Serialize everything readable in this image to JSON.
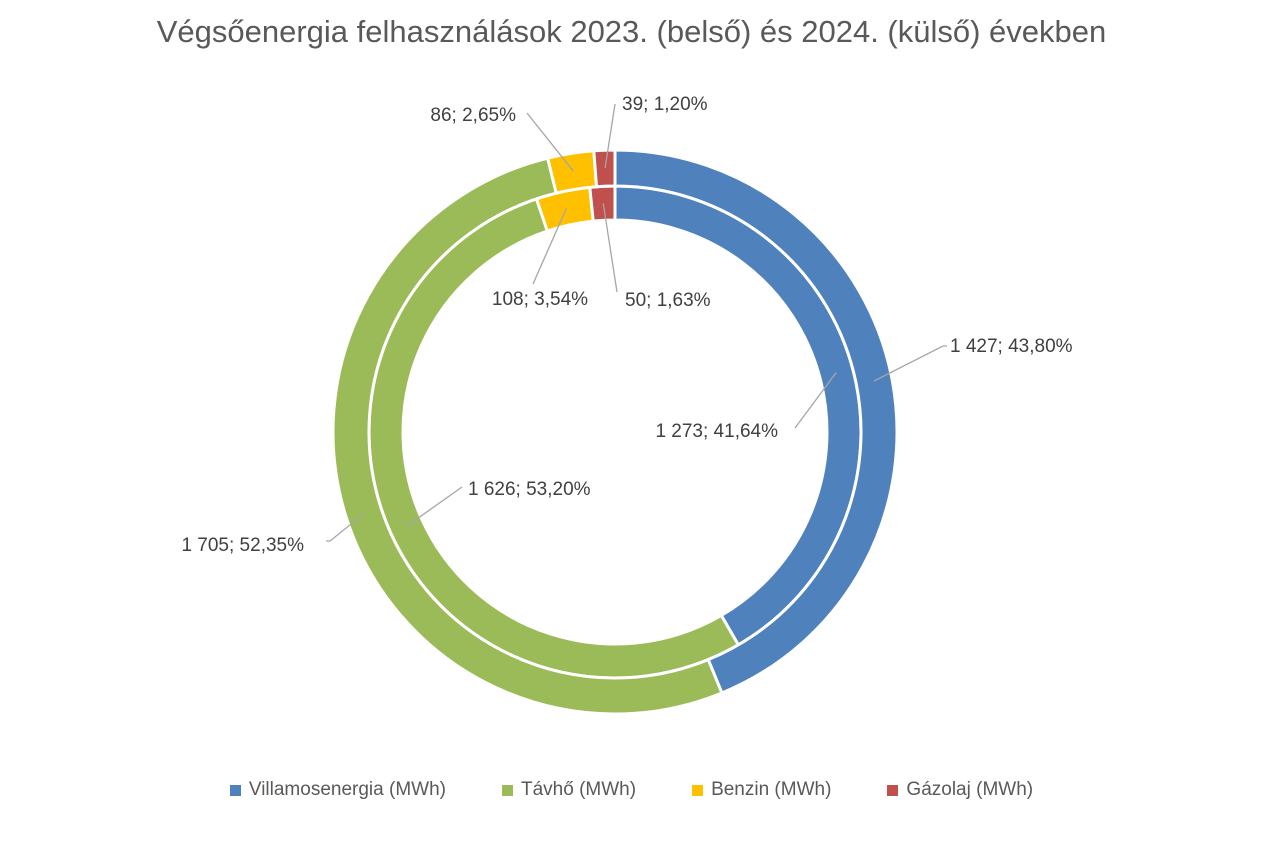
{
  "chart_data": {
    "type": "donut",
    "title": "Végsőenergia felhasználások 2023. (belső) és 2024. (külső) években",
    "categories": [
      "Villamosenergia (MWh)",
      "Távhő (MWh)",
      "Benzin (MWh)",
      "Gázolaj (MWh)"
    ],
    "colors": [
      "#4f81bd",
      "#9bbb59",
      "#ffc000",
      "#c0504d"
    ],
    "series": [
      {
        "name": "2023",
        "ring": "inner",
        "values": [
          1273,
          1626,
          108,
          50
        ],
        "labels": [
          "1 273; 41,64%",
          "1 626; 53,20%",
          "108; 3,54%",
          "50; 1,63%"
        ]
      },
      {
        "name": "2024",
        "ring": "outer",
        "values": [
          1427,
          1705,
          86,
          39
        ],
        "labels": [
          "1 427; 43,80%",
          "1 705; 52,35%",
          "86; 2,65%",
          "39; 1,20%"
        ]
      }
    ],
    "legend": "bottom"
  }
}
